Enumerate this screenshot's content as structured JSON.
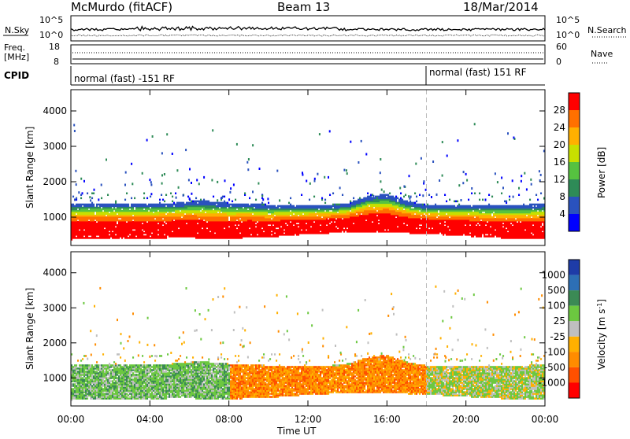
{
  "header": {
    "station": "McMurdo (fitACF)",
    "beam": "Beam 13",
    "date": "18/Mar/2014"
  },
  "noise_panel": {
    "left_label": "N.Sky",
    "right_label": "N.Search",
    "left_ticks": [
      "10^5",
      "10^0"
    ],
    "right_ticks": [
      "10^5",
      "10^0"
    ]
  },
  "freq_panel": {
    "left_label_1": "Freq.",
    "left_label_2": "[MHz]",
    "left_ticks": [
      "18",
      "8"
    ],
    "right_label": "Nave",
    "right_ticks": [
      "60",
      "0"
    ]
  },
  "cpid_panel": {
    "label": "CPID",
    "segments": [
      {
        "text": "normal (fast) -151 RF",
        "start_hour": 0
      },
      {
        "text": "normal (fast) 151 RF",
        "start_hour": 18
      }
    ]
  },
  "colors": {
    "power_scale": [
      "#0000ff",
      "#2a52be",
      "#2e8b57",
      "#56c240",
      "#c8e000",
      "#ffb000",
      "#ff7000",
      "#ff0000"
    ],
    "velocity_scale": [
      "#1e3ca8",
      "#2d6fb5",
      "#3b8a55",
      "#6cc840",
      "#bfbfbf",
      "#ffb000",
      "#ff8c00",
      "#ff5000",
      "#ff0000"
    ]
  },
  "chart_data": [
    {
      "type": "heatmap",
      "panel": "power",
      "xlabel": "",
      "ylabel": "Slant Range [km]",
      "xlim": [
        0,
        24
      ],
      "ylim": [
        200,
        4600
      ],
      "yticks": [
        "1000",
        "2000",
        "3000",
        "4000"
      ],
      "colorbar": {
        "label": "Power [dB]",
        "ticks": [
          "4",
          "8",
          "12",
          "16",
          "20",
          "24",
          "28"
        ],
        "range": [
          0,
          32
        ]
      },
      "bands": [
        {
          "hours": [
            0,
            1,
            2,
            3,
            4,
            5,
            6,
            7,
            8,
            9,
            10,
            11,
            12,
            13,
            14,
            15,
            16,
            17,
            18,
            19,
            20,
            21,
            22,
            23,
            24
          ],
          "range_low_km": [
            500,
            520,
            530,
            520,
            520,
            550,
            560,
            500,
            520,
            560,
            560,
            620,
            650,
            680,
            700,
            720,
            700,
            680,
            680,
            620,
            600,
            560,
            540,
            520,
            520
          ],
          "range_high_km": [
            1300,
            1300,
            1300,
            1300,
            1300,
            1300,
            1350,
            1350,
            1300,
            1300,
            1250,
            1250,
            1250,
            1250,
            1300,
            1500,
            1550,
            1350,
            1250,
            1250,
            1250,
            1250,
            1250,
            1250,
            1300
          ],
          "power_db": 28
        }
      ]
    },
    {
      "type": "heatmap",
      "panel": "velocity",
      "xlabel": "Time UT",
      "ylabel": "Slant Range [km]",
      "xlim": [
        0,
        24
      ],
      "ylim": [
        200,
        4600
      ],
      "xticks": [
        "00:00",
        "04:00",
        "08:00",
        "12:00",
        "16:00",
        "20:00",
        "00:00"
      ],
      "yticks": [
        "1000",
        "2000",
        "3000",
        "4000"
      ],
      "colorbar": {
        "label": "Velocity [m s^-1]",
        "ticks": [
          "1000",
          "500",
          "100",
          "25",
          "-25",
          "-100",
          "-500",
          "-1000"
        ]
      },
      "bands": [
        {
          "hours_start": 0,
          "hours_end": 8,
          "dominant_velocity": 100
        },
        {
          "hours_start": 8,
          "hours_end": 18,
          "dominant_velocity": -500
        },
        {
          "hours_start": 18,
          "hours_end": 24,
          "dominant_velocity": 25
        }
      ]
    }
  ]
}
